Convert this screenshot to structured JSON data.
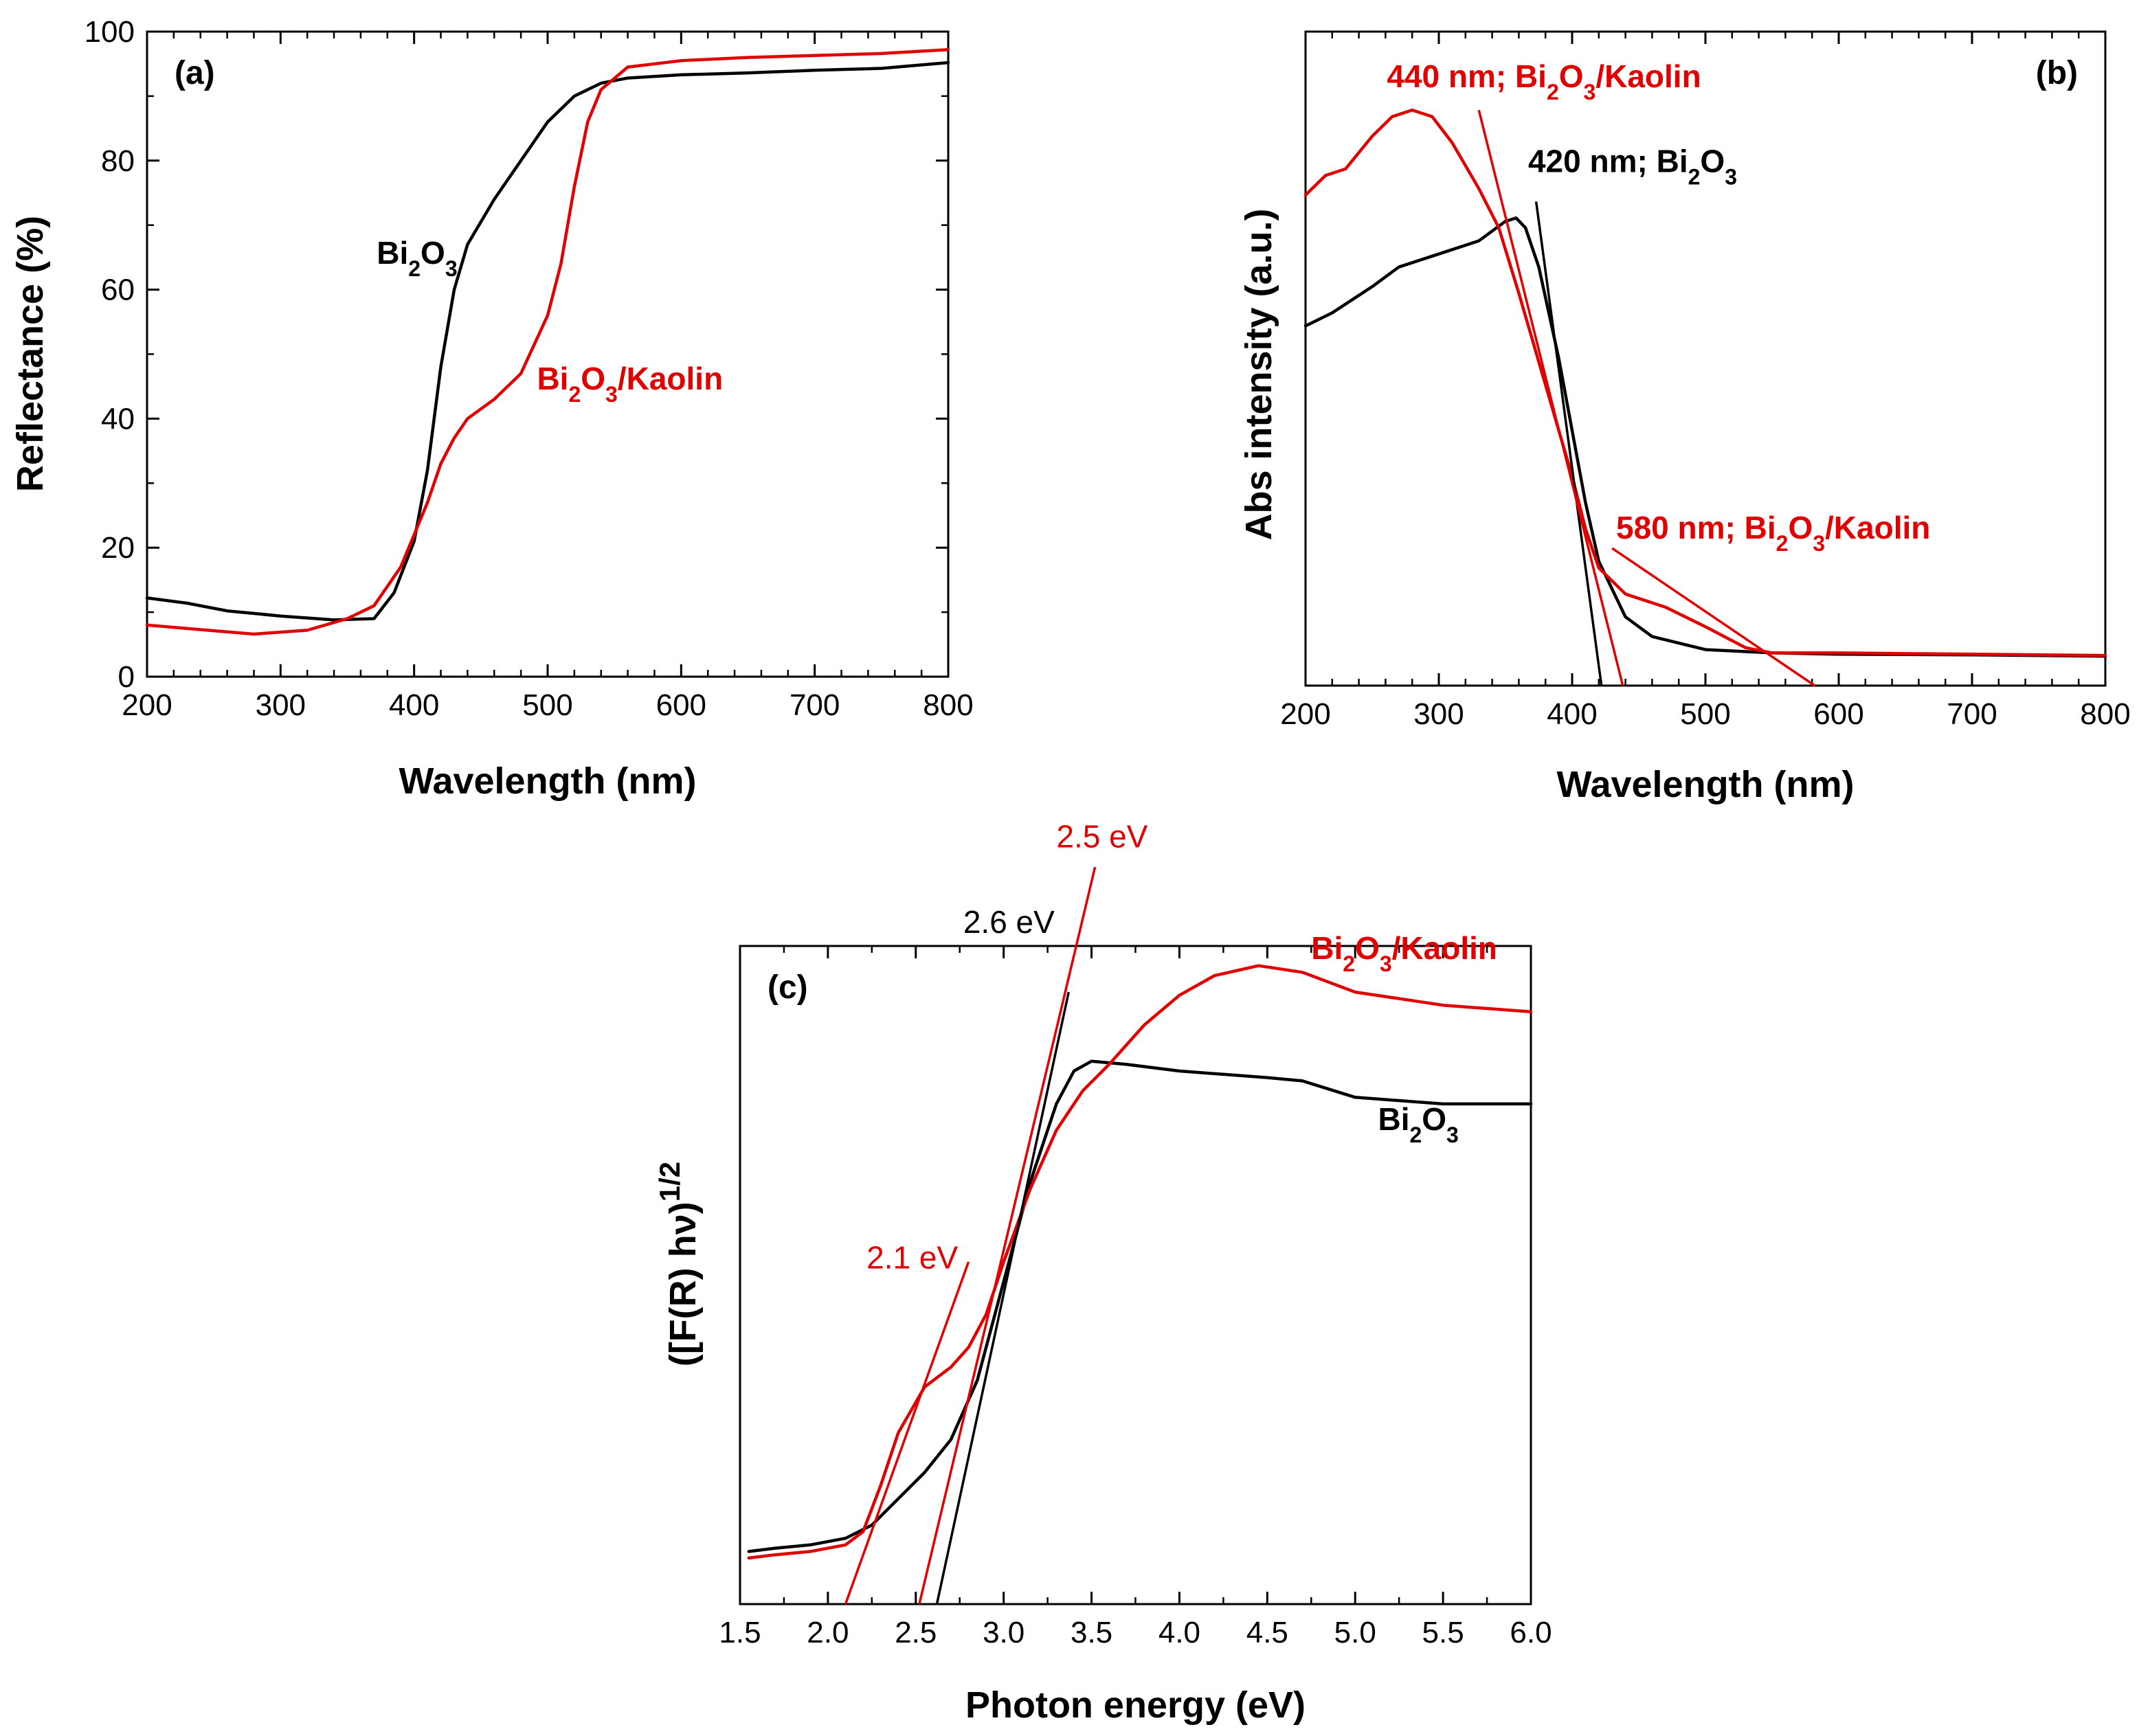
{
  "chart_data": [
    {
      "type": "line",
      "panel": "(a)",
      "xlabel": "Wavelength (nm)",
      "ylabel": "Reflectance  (%)",
      "xlim": [
        200,
        800
      ],
      "ylim": [
        0,
        100
      ],
      "xticks": [
        200,
        300,
        400,
        500,
        600,
        700,
        800
      ],
      "yticks": [
        0,
        20,
        40,
        60,
        80,
        100
      ],
      "grid": false,
      "series": [
        {
          "color": "#000000",
          "x": [
            200,
            230,
            260,
            300,
            340,
            370,
            385,
            400,
            410,
            420,
            430,
            440,
            460,
            480,
            500,
            520,
            540,
            560,
            600,
            650,
            700,
            750,
            800
          ],
          "y": [
            12.2,
            11.4,
            10.2,
            9.4,
            8.8,
            9.0,
            13,
            21,
            32,
            48,
            60,
            67,
            74,
            80,
            86,
            90,
            92,
            92.8,
            93.3,
            93.6,
            94,
            94.3,
            95.2
          ]
        },
        {
          "color": "#e00000",
          "x": [
            200,
            240,
            280,
            320,
            350,
            370,
            390,
            410,
            420,
            430,
            440,
            460,
            480,
            500,
            510,
            520,
            530,
            540,
            560,
            600,
            650,
            700,
            750,
            800
          ],
          "y": [
            8.0,
            7.3,
            6.6,
            7.2,
            9.0,
            11,
            17,
            27,
            33,
            37,
            40,
            43,
            47,
            56,
            64,
            76,
            86,
            91,
            94.5,
            95.5,
            96,
            96.3,
            96.6,
            97.2
          ]
        }
      ],
      "annotations": [
        {
          "pre": "Bi",
          "sub1": "2",
          "mid": "O",
          "sub2": "3",
          "post": "",
          "color": "#000000",
          "x": 372,
          "y": 64
        },
        {
          "pre": "Bi",
          "sub1": "2",
          "mid": "O",
          "sub2": "3",
          "post": "/Kaolin",
          "color": "#e00000",
          "x": 492,
          "y": 44.5
        }
      ]
    },
    {
      "type": "line",
      "panel": "(b)",
      "xlabel": "Wavelength (nm)",
      "ylabel": "Abs intensity (a.u.)",
      "xlim": [
        200,
        800
      ],
      "ylim": [
        0,
        1
      ],
      "xticks": [
        200,
        300,
        400,
        500,
        600,
        700,
        800
      ],
      "yticks": [],
      "grid": false,
      "series": [
        {
          "color": "#000000",
          "x": [
            200,
            220,
            250,
            270,
            300,
            330,
            350,
            358,
            365,
            375,
            390,
            400,
            410,
            420,
            440,
            460,
            500,
            550,
            600,
            700,
            800
          ],
          "y": [
            0.55,
            0.57,
            0.61,
            0.64,
            0.66,
            0.68,
            0.71,
            0.715,
            0.7,
            0.64,
            0.5,
            0.39,
            0.28,
            0.19,
            0.105,
            0.075,
            0.055,
            0.05,
            0.048,
            0.047,
            0.045
          ]
        },
        {
          "color": "#e00000",
          "x": [
            200,
            215,
            230,
            250,
            265,
            280,
            295,
            310,
            330,
            345,
            360,
            380,
            400,
            410,
            420,
            440,
            470,
            500,
            530,
            550,
            600,
            700,
            800
          ],
          "y": [
            0.75,
            0.78,
            0.79,
            0.84,
            0.87,
            0.88,
            0.87,
            0.83,
            0.76,
            0.7,
            0.6,
            0.46,
            0.32,
            0.24,
            0.18,
            0.14,
            0.12,
            0.09,
            0.058,
            0.05,
            0.05,
            0.048,
            0.046
          ]
        }
      ],
      "fit_lines": [
        {
          "color": "#000000",
          "x": [
            373,
            422
          ],
          "y": [
            0.74,
            0.0
          ]
        },
        {
          "color": "#e00000",
          "x": [
            330,
            438
          ],
          "y": [
            0.88,
            0.0
          ]
        },
        {
          "color": "#e00000",
          "x": [
            430,
            582
          ],
          "y": [
            0.21,
            0.0
          ]
        }
      ],
      "annotations": [
        {
          "pre": "440 nm; Bi",
          "sub1": "2",
          "mid": "O",
          "sub2": "3",
          "post": "/Kaolin",
          "color": "#e00000",
          "x": 261,
          "y": 0.915
        },
        {
          "pre": "420 nm;  Bi",
          "sub1": "2",
          "mid": "O",
          "sub2": "3",
          "post": "",
          "color": "#000000",
          "x": 367,
          "y": 0.785
        },
        {
          "pre": "580 nm; Bi",
          "sub1": "2",
          "mid": "O",
          "sub2": "3",
          "post": "/Kaolin",
          "color": "#e00000",
          "x": 433,
          "y": 0.225
        }
      ]
    },
    {
      "type": "line",
      "panel": "(c)",
      "xlabel": "Photon energy (eV)",
      "ylabel": "([F(R) hν)",
      "ylabel_sup": "1/2",
      "xlim": [
        1.5,
        6.0
      ],
      "ylim": [
        0,
        1
      ],
      "xticks": [
        "1.5",
        "2.0",
        "2.5",
        "3.0",
        "3.5",
        "4.0",
        "4.5",
        "5.0",
        "5.5",
        "6.0"
      ],
      "yticks": [],
      "grid": false,
      "series": [
        {
          "color": "#000000",
          "x": [
            1.55,
            1.7,
            1.9,
            2.1,
            2.25,
            2.4,
            2.55,
            2.7,
            2.85,
            3.0,
            3.15,
            3.3,
            3.4,
            3.5,
            3.7,
            4.0,
            4.5,
            4.7,
            5.0,
            5.5,
            6.0
          ],
          "y": [
            0.08,
            0.085,
            0.09,
            0.1,
            0.12,
            0.16,
            0.2,
            0.25,
            0.34,
            0.49,
            0.64,
            0.76,
            0.81,
            0.825,
            0.82,
            0.81,
            0.8,
            0.795,
            0.77,
            0.76,
            0.76
          ]
        },
        {
          "color": "#e00000",
          "x": [
            1.55,
            1.7,
            1.9,
            2.1,
            2.2,
            2.3,
            2.4,
            2.55,
            2.7,
            2.8,
            2.9,
            3.0,
            3.15,
            3.3,
            3.45,
            3.6,
            3.8,
            4.0,
            4.2,
            4.45,
            4.7,
            5.0,
            5.5,
            6.0
          ],
          "y": [
            0.07,
            0.075,
            0.08,
            0.09,
            0.11,
            0.18,
            0.26,
            0.33,
            0.36,
            0.39,
            0.44,
            0.52,
            0.63,
            0.72,
            0.78,
            0.82,
            0.88,
            0.925,
            0.955,
            0.97,
            0.96,
            0.93,
            0.91,
            0.9
          ]
        }
      ],
      "fit_lines": [
        {
          "color": "#000000",
          "x": [
            2.62,
            3.37
          ],
          "y": [
            0.0,
            0.93
          ]
        },
        {
          "color": "#e00000",
          "x": [
            2.52,
            3.52
          ],
          "y": [
            0.0,
            1.12
          ]
        },
        {
          "color": "#e00000",
          "x": [
            2.1,
            2.8
          ],
          "y": [
            0.0,
            0.52
          ]
        }
      ],
      "annotations": [
        {
          "pre": "2.5 eV",
          "sub1": "",
          "mid": "",
          "sub2": "",
          "post": "",
          "color": "#e00000",
          "x": 3.3,
          "y": 1.15,
          "plain": true
        },
        {
          "pre": "2.6 eV",
          "sub1": "",
          "mid": "",
          "sub2": "",
          "post": "",
          "color": "#000000",
          "x": 2.77,
          "y": 1.02,
          "plain": true
        },
        {
          "pre": "Bi",
          "sub1": "2",
          "mid": "O",
          "sub2": "3",
          "post": "/Kaolin",
          "color": "#e00000",
          "x": 4.75,
          "y": 0.98
        },
        {
          "pre": "Bi",
          "sub1": "2",
          "mid": "O",
          "sub2": "3",
          "post": "",
          "color": "#000000",
          "x": 5.13,
          "y": 0.72
        },
        {
          "pre": "2.1 eV",
          "sub1": "",
          "mid": "",
          "sub2": "",
          "post": "",
          "color": "#e00000",
          "x": 2.22,
          "y": 0.51,
          "plain": true
        }
      ]
    }
  ]
}
